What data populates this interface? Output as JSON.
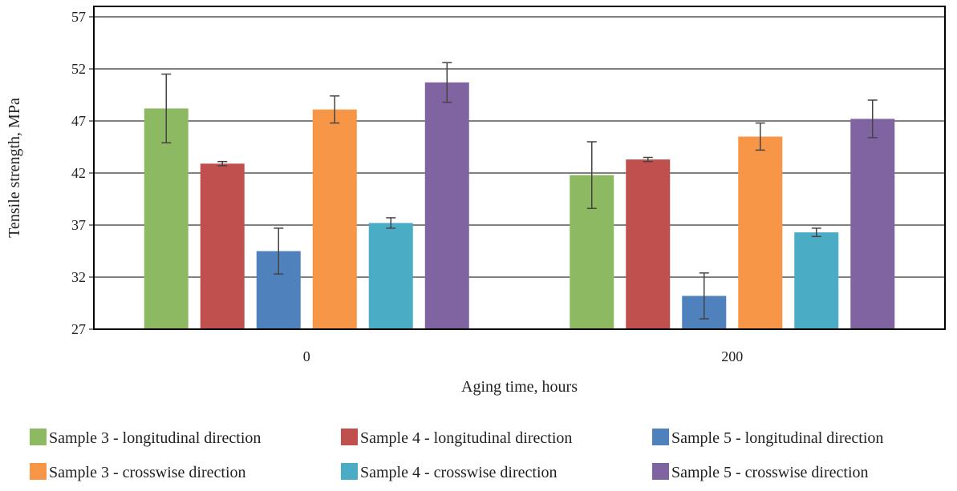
{
  "chart_data": {
    "type": "bar",
    "title": "",
    "xlabel": "Aging time, hours",
    "ylabel": "Tensile strength, MPa",
    "categories": [
      "0",
      "200"
    ],
    "ylim": [
      27,
      58
    ],
    "yticks": [
      "27",
      "32",
      "37",
      "42",
      "47",
      "52",
      "57"
    ],
    "grid": true,
    "legend_position": "bottom",
    "series": [
      {
        "name": "Sample 3 - longitudinal direction",
        "color": "#8db962",
        "values": [
          48.2,
          41.8
        ],
        "errors": [
          3.3,
          3.2
        ]
      },
      {
        "name": "Sample 4 - longitudinal direction",
        "color": "#c0504d",
        "values": [
          42.9,
          43.3
        ],
        "errors": [
          0.2,
          0.2
        ]
      },
      {
        "name": "Sample 5 - longitudinal direction",
        "color": "#4f81bd",
        "values": [
          34.5,
          30.2
        ],
        "errors": [
          2.2,
          2.2
        ]
      },
      {
        "name": "Sample 3 - crosswise direction",
        "color": "#f79646",
        "values": [
          48.1,
          45.5
        ],
        "errors": [
          1.3,
          1.3
        ]
      },
      {
        "name": "Sample 4 - crosswise direction",
        "color": "#4bacc6",
        "values": [
          37.2,
          36.3
        ],
        "errors": [
          0.5,
          0.4
        ]
      },
      {
        "name": "Sample 5 - crosswise direction",
        "color": "#8064a2",
        "values": [
          50.7,
          47.2
        ],
        "errors": [
          1.9,
          1.8
        ]
      }
    ]
  }
}
